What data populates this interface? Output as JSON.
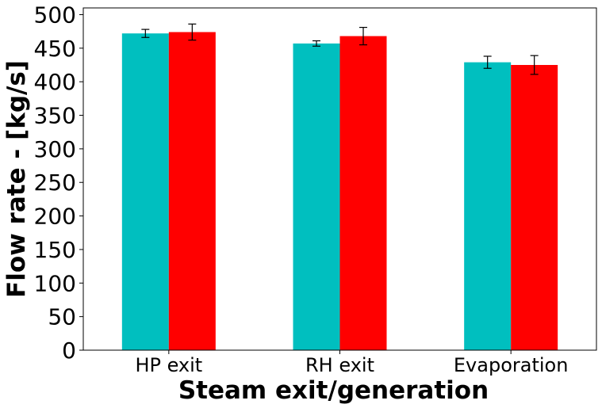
{
  "chart_data": {
    "type": "bar",
    "title": "",
    "xlabel": "Steam exit/generation",
    "ylabel": "Flow rate - [kg/s]",
    "categories": [
      "HP exit",
      "RH exit",
      "Evaporation"
    ],
    "ylim": [
      0,
      510
    ],
    "yticks": [
      0,
      50,
      100,
      150,
      200,
      250,
      300,
      350,
      400,
      450,
      500
    ],
    "ytick_labels": [
      "0",
      "50",
      "100",
      "150",
      "200",
      "250",
      "300",
      "350",
      "400",
      "450",
      "500"
    ],
    "grid": false,
    "legend": "none",
    "series": [
      {
        "color": "#00bfbf",
        "values": [
          472,
          457,
          429
        ],
        "errors": [
          6,
          4,
          9
        ]
      },
      {
        "color": "#ff0000",
        "values": [
          474,
          468,
          425
        ],
        "errors": [
          12,
          13,
          14
        ]
      }
    ]
  }
}
